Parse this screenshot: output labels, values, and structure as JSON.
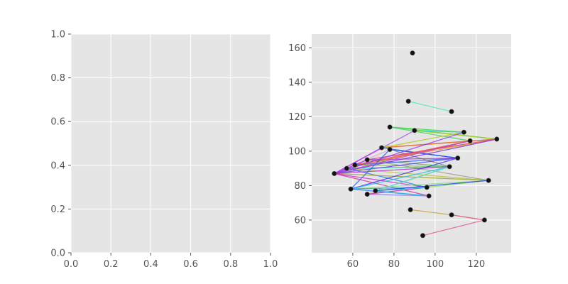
{
  "chart_data": [
    {
      "type": "line",
      "title": "",
      "xlabel": "",
      "ylabel": "",
      "xlim": [
        0,
        1
      ],
      "ylim": [
        0,
        1
      ],
      "grid": true,
      "x_ticks": [
        "0.0",
        "0.2",
        "0.4",
        "0.6",
        "0.8",
        "1.0"
      ],
      "y_ticks": [
        "0.0",
        "0.2",
        "0.4",
        "0.6",
        "0.8",
        "1.0"
      ],
      "series": []
    },
    {
      "type": "scatter",
      "title": "",
      "xlabel": "",
      "ylabel": "",
      "xlim": [
        40,
        137
      ],
      "ylim": [
        41,
        168
      ],
      "grid": true,
      "x_ticks": [
        "60",
        "80",
        "100",
        "120"
      ],
      "y_ticks": [
        "60",
        "80",
        "100",
        "120",
        "140",
        "160"
      ],
      "points": [
        {
          "x": 51,
          "y": 87
        },
        {
          "x": 57,
          "y": 90
        },
        {
          "x": 59,
          "y": 78
        },
        {
          "x": 61,
          "y": 92
        },
        {
          "x": 67,
          "y": 75
        },
        {
          "x": 67,
          "y": 95
        },
        {
          "x": 71,
          "y": 77
        },
        {
          "x": 74,
          "y": 102
        },
        {
          "x": 78,
          "y": 101
        },
        {
          "x": 78,
          "y": 114
        },
        {
          "x": 87,
          "y": 129
        },
        {
          "x": 88,
          "y": 66
        },
        {
          "x": 89,
          "y": 157
        },
        {
          "x": 90,
          "y": 112
        },
        {
          "x": 94,
          "y": 51
        },
        {
          "x": 96,
          "y": 79
        },
        {
          "x": 97,
          "y": 74
        },
        {
          "x": 107,
          "y": 91
        },
        {
          "x": 108,
          "y": 63
        },
        {
          "x": 108,
          "y": 123
        },
        {
          "x": 111,
          "y": 96
        },
        {
          "x": 114,
          "y": 111
        },
        {
          "x": 117,
          "y": 106
        },
        {
          "x": 124,
          "y": 60
        },
        {
          "x": 126,
          "y": 83
        },
        {
          "x": 130,
          "y": 107
        }
      ],
      "edges": [
        {
          "from": 10,
          "to": 19,
          "color": "#40f0a0"
        },
        {
          "from": 11,
          "to": 18,
          "color": "#c8a030"
        },
        {
          "from": 14,
          "to": 23,
          "color": "#e05c90"
        },
        {
          "from": 18,
          "to": 23,
          "color": "#d84868"
        },
        {
          "from": 9,
          "to": 21,
          "color": "#30e040"
        },
        {
          "from": 9,
          "to": 25,
          "color": "#60c850"
        },
        {
          "from": 9,
          "to": 22,
          "color": "#40d060"
        },
        {
          "from": 13,
          "to": 21,
          "color": "#20c8c0"
        },
        {
          "from": 13,
          "to": 25,
          "color": "#a0d020"
        },
        {
          "from": 7,
          "to": 25,
          "color": "#e04040"
        },
        {
          "from": 7,
          "to": 22,
          "color": "#e08030"
        },
        {
          "from": 7,
          "to": 21,
          "color": "#c0c020"
        },
        {
          "from": 7,
          "to": 20,
          "color": "#3080e0"
        },
        {
          "from": 8,
          "to": 20,
          "color": "#2040f0"
        },
        {
          "from": 8,
          "to": 17,
          "color": "#808080"
        },
        {
          "from": 5,
          "to": 25,
          "color": "#d03060"
        },
        {
          "from": 5,
          "to": 20,
          "color": "#a030e0"
        },
        {
          "from": 5,
          "to": 17,
          "color": "#40c040"
        },
        {
          "from": 5,
          "to": 24,
          "color": "#9a9a9a"
        },
        {
          "from": 3,
          "to": 25,
          "color": "#e0a020"
        },
        {
          "from": 3,
          "to": 22,
          "color": "#f04080"
        },
        {
          "from": 3,
          "to": 17,
          "color": "#80d030"
        },
        {
          "from": 3,
          "to": 20,
          "color": "#3060f0"
        },
        {
          "from": 1,
          "to": 22,
          "color": "#e06030"
        },
        {
          "from": 1,
          "to": 24,
          "color": "#c0c030"
        },
        {
          "from": 1,
          "to": 17,
          "color": "#30c0a0"
        },
        {
          "from": 1,
          "to": 15,
          "color": "#2080f0"
        },
        {
          "from": 0,
          "to": 25,
          "color": "#8030e0"
        },
        {
          "from": 0,
          "to": 24,
          "color": "#a0a020"
        },
        {
          "from": 0,
          "to": 22,
          "color": "#c040d0"
        },
        {
          "from": 0,
          "to": 21,
          "color": "#9040f0"
        },
        {
          "from": 0,
          "to": 20,
          "color": "#6040f0"
        },
        {
          "from": 0,
          "to": 17,
          "color": "#b030d0"
        },
        {
          "from": 0,
          "to": 15,
          "color": "#e020e0"
        },
        {
          "from": 0,
          "to": 16,
          "color": "#d030a0"
        },
        {
          "from": 0,
          "to": 13,
          "color": "#a050e0"
        },
        {
          "from": 0,
          "to": 7,
          "color": "#c030f0"
        },
        {
          "from": 0,
          "to": 8,
          "color": "#e0a0e0"
        },
        {
          "from": 0,
          "to": 5,
          "color": "#9020f0"
        },
        {
          "from": 2,
          "to": 24,
          "color": "#80e080"
        },
        {
          "from": 2,
          "to": 20,
          "color": "#4030f0"
        },
        {
          "from": 2,
          "to": 17,
          "color": "#20c0e0"
        },
        {
          "from": 2,
          "to": 15,
          "color": "#30a0f0"
        },
        {
          "from": 2,
          "to": 16,
          "color": "#4070e0"
        },
        {
          "from": 2,
          "to": 8,
          "color": "#2060f0"
        },
        {
          "from": 4,
          "to": 16,
          "color": "#8080f0"
        },
        {
          "from": 4,
          "to": 24,
          "color": "#90e070"
        },
        {
          "from": 4,
          "to": 17,
          "color": "#c0c0c0"
        },
        {
          "from": 4,
          "to": 15,
          "color": "#e020c0"
        },
        {
          "from": 6,
          "to": 17,
          "color": "#40e0c0"
        },
        {
          "from": 6,
          "to": 15,
          "color": "#20e0e0"
        },
        {
          "from": 6,
          "to": 24,
          "color": "#2040e0"
        },
        {
          "from": 6,
          "to": 16,
          "color": "#20c0f0"
        }
      ]
    }
  ],
  "colors": {
    "axes_bg": "#e5e5e5",
    "grid": "#ffffff",
    "marker": "#111111"
  }
}
